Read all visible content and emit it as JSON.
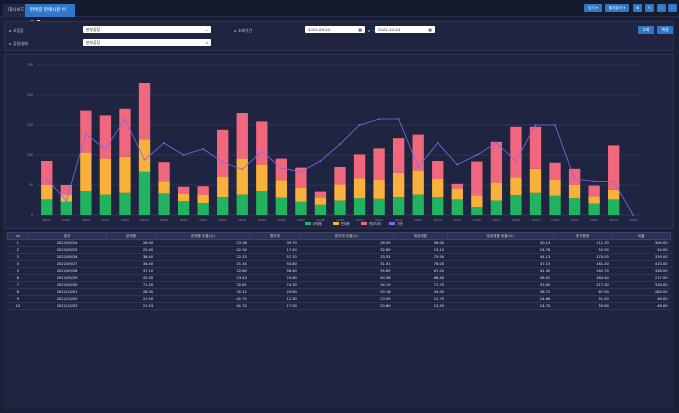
{
  "tabs": {
    "dashboard": "대시보드",
    "current": "판매량 판매사원 비교"
  },
  "toolbar": {
    "open": "닫기 ▾",
    "fav": "즐겨찾기 ▾",
    "icon1": "⚙",
    "icon2": "↻",
    "icon3": "⛶",
    "icon4": "⛶"
  },
  "filter": {
    "site_label": "사업장",
    "site_value": "본부공장",
    "period_label": "조회기간",
    "date_from": "2022-09-24",
    "date_sep": "~",
    "date_to": "2022-10-24",
    "person_label": "공정/설비",
    "person_value": "본부공장",
    "search_btn": "조회",
    "reset_btn": "엑셀"
  },
  "chart_data": {
    "type": "bar",
    "categories": [
      "09/24",
      "09/25",
      "09/26",
      "09/27",
      "09/28",
      "09/29",
      "09/30",
      "10/01",
      "10/02",
      "10/03",
      "10/04",
      "10/05",
      "10/06",
      "10/07",
      "10/08",
      "10/09",
      "10/10",
      "10/11",
      "10/12",
      "10/13",
      "10/14",
      "10/15",
      "10/16",
      "10/17",
      "10/18",
      "10/19",
      "10/20",
      "10/21",
      "10/22",
      "10/23",
      "10/24"
    ],
    "series": [
      {
        "name": "완제품",
        "color": "#22b361",
        "values": [
          26,
          22,
          40,
          34,
          37,
          72,
          36,
          23,
          20,
          30,
          34,
          40,
          29,
          22,
          17,
          24,
          28,
          27,
          30,
          34,
          30,
          26,
          13,
          24,
          33,
          37,
          32,
          28,
          19,
          26,
          0
        ]
      },
      {
        "name": "반제품",
        "color": "#f8b13b",
        "values": [
          24,
          12,
          64,
          60,
          60,
          54,
          20,
          12,
          14,
          34,
          60,
          44,
          29,
          23,
          12,
          27,
          33,
          32,
          40,
          40,
          30,
          18,
          20,
          30,
          30,
          40,
          27,
          22,
          12,
          16,
          0
        ]
      },
      {
        "name": "원부자재",
        "color": "#f0677e",
        "values": [
          40,
          16,
          70,
          72,
          80,
          94,
          32,
          12,
          14,
          78,
          76,
          72,
          36,
          34,
          10,
          29,
          40,
          52,
          58,
          60,
          30,
          8,
          56,
          68,
          84,
          70,
          28,
          27,
          18,
          74,
          0
        ]
      }
    ],
    "line": {
      "name": "기준",
      "color": "#8066f0",
      "values": [
        60,
        24,
        135,
        110,
        160,
        92,
        120,
        100,
        110,
        88,
        76,
        106,
        78,
        72,
        90,
        118,
        150,
        160,
        160,
        80,
        120,
        84,
        100,
        120,
        90,
        150,
        150,
        60,
        56,
        56,
        0
      ]
    },
    "legend": [
      "완제품",
      "반제품",
      "원부자재",
      "기준"
    ],
    "ylim": [
      0,
      250
    ]
  },
  "table": {
    "headers": [
      "no",
      "일자",
      "완제품",
      "완제품 비율(%)",
      "원자재",
      "원자재 비율(%)",
      "제공제품",
      "제공제품 비율(%)",
      "총사용량",
      "비율"
    ],
    "rows": [
      [
        "1",
        "2022/09/24",
        "26.00",
        "23.38",
        "39.70",
        "26.59",
        "56.00",
        "30.13",
        "111.70",
        "304.00"
      ],
      [
        "2",
        "2022/09/25",
        "22.40",
        "42.34",
        "17.40",
        "32.89",
        "13.10",
        "24.76",
        "52.90",
        "44.00"
      ],
      [
        "3",
        "2022/09/26",
        "38.40",
        "22.33",
        "57.70",
        "33.55",
        "75.90",
        "44.13",
        "170.00",
        "339.00"
      ],
      [
        "4",
        "2022/09/27",
        "34.40",
        "21.34",
        "50.80",
        "31.51",
        "76.00",
        "47.15",
        "161.20",
        "413.00"
      ],
      [
        "5",
        "2022/09/28",
        "37.10",
        "22.80",
        "58.40",
        "35.89",
        "67.20",
        "41.30",
        "162.70",
        "328.00"
      ],
      [
        "6",
        "2022/09/29",
        "43.30",
        "23.43",
        "74.60",
        "40.56",
        "66.40",
        "36.01",
        "184.40",
        "217.00"
      ],
      [
        "7",
        "2022/09/30",
        "71.30",
        "32.81",
        "74.30",
        "34.19",
        "71.70",
        "33.00",
        "217.30",
        "328.00"
      ],
      [
        "8",
        "2022/10/01",
        "28.30",
        "32.12",
        "25.60",
        "29.16",
        "34.00",
        "38.72",
        "87.90",
        "183.00"
      ],
      [
        "9",
        "2022/10/02",
        "21.50",
        "41.75",
        "12.30",
        "23.59",
        "12.70",
        "24.66",
        "51.50",
        "46.00"
      ],
      [
        "10",
        "2022/10/03",
        "21.53",
        "41.70",
        "17.00",
        "20.60",
        "12.50",
        "24.70",
        "50.60",
        "46.00"
      ]
    ]
  }
}
